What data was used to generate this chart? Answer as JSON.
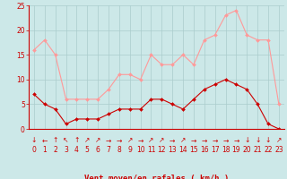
{
  "hours": [
    0,
    1,
    2,
    3,
    4,
    5,
    6,
    7,
    8,
    9,
    10,
    11,
    12,
    13,
    14,
    15,
    16,
    17,
    18,
    19,
    20,
    21,
    22,
    23
  ],
  "wind_avg": [
    7,
    5,
    4,
    1,
    2,
    2,
    2,
    3,
    4,
    4,
    4,
    6,
    6,
    5,
    4,
    6,
    8,
    9,
    10,
    9,
    8,
    5,
    1,
    0
  ],
  "wind_gust": [
    16,
    18,
    15,
    6,
    6,
    6,
    6,
    8,
    11,
    11,
    10,
    15,
    13,
    13,
    15,
    13,
    18,
    19,
    23,
    24,
    19,
    18,
    18,
    5
  ],
  "avg_color": "#cc0000",
  "gust_color": "#ff9999",
  "bg_color": "#cce8e8",
  "grid_color": "#aacccc",
  "axis_color": "#cc0000",
  "xlabel": "Vent moyen/en rafales ( km/h )",
  "ylim": [
    0,
    25
  ],
  "yticks": [
    0,
    5,
    10,
    15,
    20,
    25
  ],
  "arrow_row": [
    "↓",
    "←",
    "↑",
    "↖",
    "↑",
    "↗",
    "↗",
    "→",
    "→",
    "↗",
    "→",
    "↗",
    "↗",
    "→",
    "↗",
    "→",
    "→",
    "→",
    "→",
    "→",
    "↓",
    "↓",
    "↓",
    "↗"
  ],
  "tick_fontsize": 5.5,
  "label_fontsize": 6.5,
  "arrow_fontsize": 5.5
}
